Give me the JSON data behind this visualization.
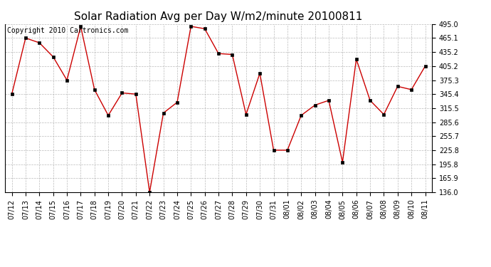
{
  "title": "Solar Radiation Avg per Day W/m2/minute 20100811",
  "copyright": "Copyright 2010 Cartronics.com",
  "labels": [
    "07/12",
    "07/13",
    "07/14",
    "07/15",
    "07/16",
    "07/17",
    "07/18",
    "07/19",
    "07/20",
    "07/21",
    "07/22",
    "07/23",
    "07/24",
    "07/25",
    "07/26",
    "07/27",
    "07/28",
    "07/29",
    "07/30",
    "07/31",
    "08/01",
    "08/02",
    "08/03",
    "08/04",
    "08/05",
    "08/06",
    "08/07",
    "08/08",
    "08/09",
    "08/10",
    "08/11"
  ],
  "values": [
    345.4,
    465.1,
    455.0,
    425.0,
    375.3,
    490.0,
    355.0,
    300.0,
    348.0,
    345.4,
    136.0,
    305.0,
    328.0,
    490.0,
    485.0,
    432.0,
    430.0,
    302.0,
    390.0,
    225.8,
    225.8,
    300.0,
    322.0,
    332.0,
    200.0,
    420.0,
    332.0,
    302.0,
    362.0,
    355.0,
    405.2
  ],
  "ylim": [
    136.0,
    495.0
  ],
  "yticks": [
    136.0,
    165.9,
    195.8,
    225.8,
    255.7,
    285.6,
    315.5,
    345.4,
    375.3,
    405.2,
    435.2,
    465.1,
    495.0
  ],
  "line_color": "#cc0000",
  "marker_color": "#000000",
  "bg_color": "#ffffff",
  "grid_color": "#aaaaaa",
  "title_fontsize": 11,
  "copyright_fontsize": 7,
  "tick_fontsize": 7,
  "figwidth": 6.9,
  "figheight": 3.75,
  "dpi": 100
}
